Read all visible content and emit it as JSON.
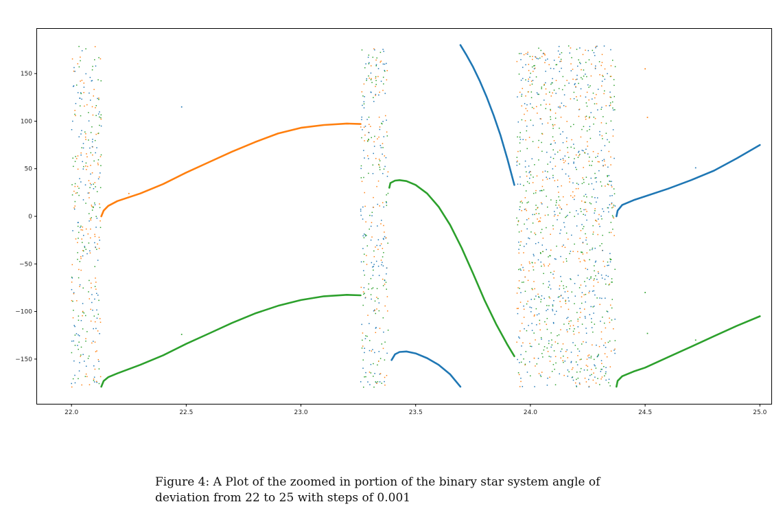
{
  "caption": "Figure 4: A Plot of the zoomed in portion of the binary star system angle of deviation from 22 to 25 with steps of 0.001",
  "chart_data": {
    "type": "scatter",
    "title": "",
    "xlabel": "",
    "ylabel": "",
    "xlim": [
      21.85,
      25.05
    ],
    "ylim": [
      -197,
      197
    ],
    "xticks": [
      22.0,
      22.5,
      23.0,
      23.5,
      24.0,
      24.5,
      25.0
    ],
    "xtick_labels": [
      "22.0",
      "22.5",
      "23.0",
      "23.5",
      "24.0",
      "24.5",
      "25.0"
    ],
    "yticks": [
      150,
      100,
      50,
      0,
      -50,
      -100,
      -150
    ],
    "ytick_labels": [
      "150",
      "100",
      "50",
      "0",
      "−50",
      "−100",
      "−150"
    ],
    "grid": false,
    "colors": {
      "series_1": "#1f77b4",
      "series_2": "#ff7f0e",
      "series_3": "#2ca02c"
    },
    "series": [
      {
        "color": "#1f77b4",
        "curves": [
          {
            "x": [
              23.395,
              23.41,
              23.43,
              23.46,
              23.5,
              23.55,
              23.6,
              23.65,
              23.695
            ],
            "y": [
              -151,
              -145,
              -142.5,
              -142,
              -144,
              -149,
              -156,
              -166,
              -179
            ]
          },
          {
            "x": [
              23.695,
              23.72,
              23.75,
              23.78,
              23.81,
              23.84,
              23.87,
              23.9,
              23.93
            ],
            "y": [
              180,
              170,
              157,
              142,
              125,
              106,
              85,
              60,
              33
            ]
          },
          {
            "x": [
              24.375,
              24.38,
              24.4,
              24.45,
              24.5,
              24.6,
              24.7,
              24.8,
              24.9,
              25.0
            ],
            "y": [
              0,
              6,
              12,
              17,
              21,
              29,
              38,
              48,
              61,
              75
            ]
          }
        ],
        "outliers": [
          {
            "x": 22.48,
            "y": 115
          },
          {
            "x": 24.72,
            "y": 51
          }
        ]
      },
      {
        "color": "#ff7f0e",
        "curves": [
          {
            "x": [
              22.13,
              22.14,
              22.16,
              22.2,
              22.3,
              22.4,
              22.5,
              22.6,
              22.7,
              22.8,
              22.9,
              23.0,
              23.1,
              23.2,
              23.26
            ],
            "y": [
              0,
              6,
              11,
              16,
              24,
              34,
              46,
              57,
              68,
              78,
              87,
              93,
              96,
              97.5,
              97
            ]
          }
        ],
        "outliers": [
          {
            "x": 22.25,
            "y": 24
          },
          {
            "x": 24.5,
            "y": 155
          },
          {
            "x": 24.51,
            "y": 104
          }
        ]
      },
      {
        "color": "#2ca02c",
        "curves": [
          {
            "x": [
              22.13,
              22.14,
              22.16,
              22.2,
              22.3,
              22.4,
              22.5,
              22.6,
              22.7,
              22.8,
              22.9,
              23.0,
              23.1,
              23.2,
              23.26
            ],
            "y": [
              -179,
              -173,
              -169,
              -165,
              -156,
              -146,
              -134,
              -123,
              -112,
              -102,
              -94,
              -88,
              -84,
              -82.5,
              -83
            ]
          },
          {
            "x": [
              23.385,
              23.39,
              23.41,
              23.43,
              23.46,
              23.5,
              23.55,
              23.6,
              23.65,
              23.7,
              23.75,
              23.8,
              23.85,
              23.9,
              23.93
            ],
            "y": [
              30,
              35,
              37.5,
              38,
              37,
              33,
              24,
              10,
              -9,
              -33,
              -60,
              -88,
              -113,
              -135,
              -147
            ]
          },
          {
            "x": [
              24.375,
              24.38,
              24.4,
              24.45,
              24.5,
              24.6,
              24.7,
              24.8,
              24.9,
              25.0
            ],
            "y": [
              -179,
              -173,
              -168,
              -163,
              -159,
              -148,
              -137,
              -126,
              -115,
              -105
            ]
          }
        ],
        "outliers": [
          {
            "x": 22.48,
            "y": -124
          },
          {
            "x": 24.5,
            "y": -80
          },
          {
            "x": 24.51,
            "y": -123
          },
          {
            "x": 24.72,
            "y": -130
          }
        ]
      }
    ],
    "scatter_bands": [
      [
        22.0,
        22.13
      ],
      [
        23.26,
        23.38
      ],
      [
        23.94,
        24.37
      ]
    ]
  }
}
